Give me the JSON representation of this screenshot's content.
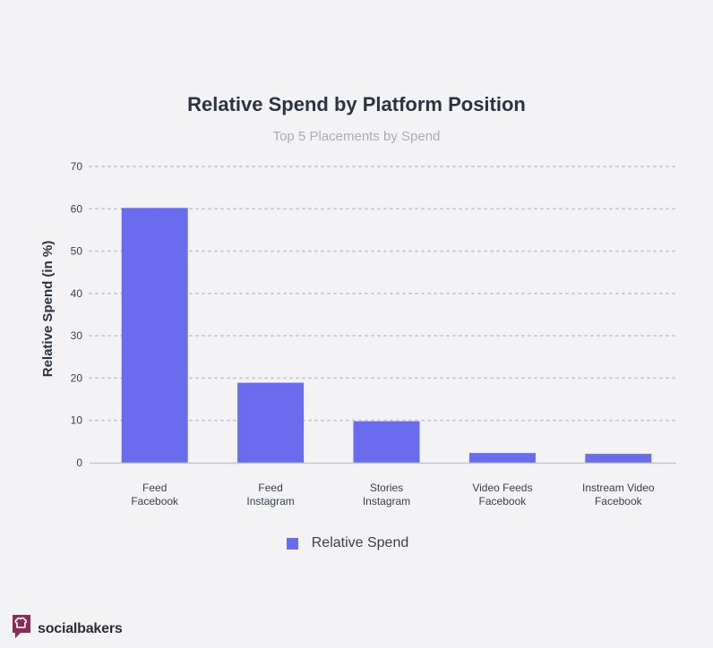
{
  "chart_data": {
    "type": "bar",
    "title": "Relative Spend by Platform Position",
    "subtitle": "Top 5 Placements by Spend",
    "ylabel": "Relative Spend (in %)",
    "xlabel": "",
    "categories": [
      [
        "Feed",
        "Facebook"
      ],
      [
        "Feed",
        "Instagram"
      ],
      [
        "Stories",
        "Instagram"
      ],
      [
        "Video Feeds",
        "Facebook"
      ],
      [
        "Instream Video",
        "Facebook"
      ]
    ],
    "series": [
      {
        "name": "Relative Spend",
        "values": [
          60.2,
          18.9,
          9.8,
          2.3,
          2.1
        ],
        "color": "#6a6cee"
      }
    ],
    "ylim": [
      0,
      70
    ],
    "yticks": [
      0,
      10,
      20,
      30,
      40,
      50,
      60,
      70
    ],
    "grid": true,
    "legend_position": "bottom"
  },
  "brand": {
    "name": "socialbakers",
    "color": "#8c2a5a",
    "icon": "chef-hat-speech-bubble-icon"
  }
}
